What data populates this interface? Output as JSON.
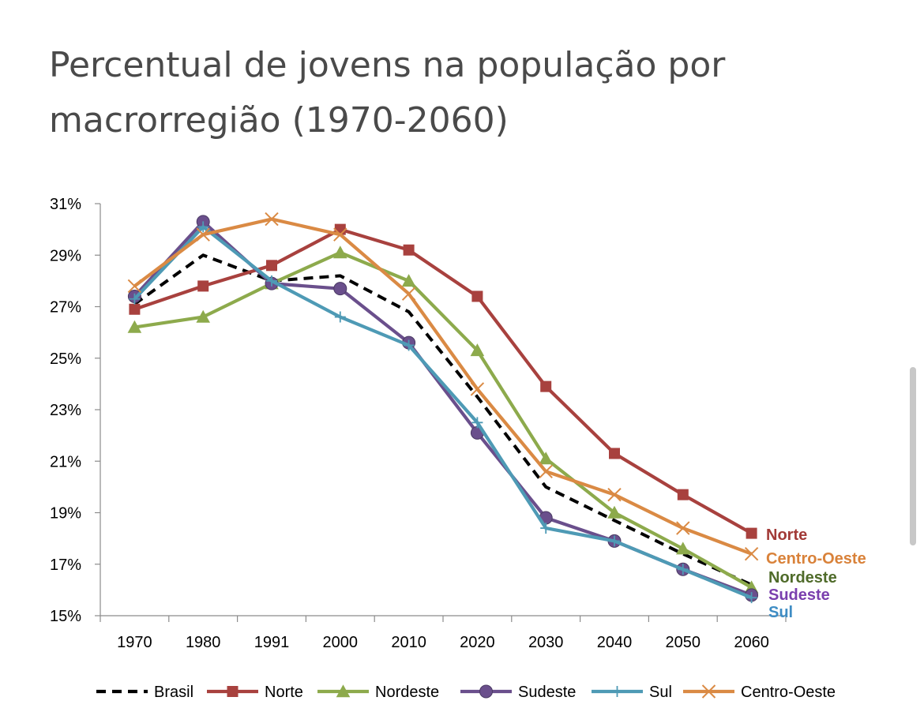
{
  "title_lines": [
    "Percentual de jovens na população por",
    "macrorregião (1970-2060)"
  ],
  "chart_data": {
    "type": "line",
    "title": "Percentual de jovens na população por macrorregião (1970-2060)",
    "categories": [
      "1970",
      "1980",
      "1991",
      "2000",
      "2010",
      "2020",
      "2030",
      "2040",
      "2050",
      "2060"
    ],
    "ylim": [
      15,
      31
    ],
    "yticks": [
      15,
      17,
      19,
      21,
      23,
      25,
      27,
      29,
      31
    ],
    "ytick_labels": [
      "15%",
      "17%",
      "19%",
      "21%",
      "23%",
      "25%",
      "27%",
      "29%",
      "31%"
    ],
    "grid": false,
    "legend_position": "bottom",
    "series": [
      {
        "name": "Brasil",
        "color": "#000000",
        "marker": "none",
        "dashed": true,
        "end_label": "",
        "values": [
          27.1,
          29.0,
          28.0,
          28.2,
          26.8,
          23.5,
          20.0,
          18.7,
          17.4,
          16.2
        ]
      },
      {
        "name": "Norte",
        "color": "#A8413E",
        "marker": "square",
        "dashed": false,
        "end_label": "Norte",
        "values": [
          26.9,
          27.8,
          28.6,
          30.0,
          29.2,
          27.4,
          23.9,
          21.3,
          19.7,
          18.2
        ]
      },
      {
        "name": "Nordeste",
        "color": "#8DAA4C",
        "marker": "triangle",
        "dashed": false,
        "end_label": "Nordeste",
        "values": [
          26.2,
          26.6,
          27.9,
          29.1,
          28.0,
          25.3,
          21.1,
          19.0,
          17.6,
          16.1
        ]
      },
      {
        "name": "Sudeste",
        "color": "#6A4F8C",
        "marker": "circle",
        "dashed": false,
        "end_label": "Sudeste",
        "values": [
          27.4,
          30.3,
          27.9,
          27.7,
          25.6,
          22.1,
          18.8,
          17.9,
          16.8,
          15.8
        ]
      },
      {
        "name": "Sul",
        "color": "#4E9AB5",
        "marker": "plus",
        "dashed": false,
        "end_label": "Sul",
        "values": [
          27.3,
          30.1,
          28.0,
          26.6,
          25.5,
          22.5,
          18.4,
          17.9,
          16.8,
          15.7
        ]
      },
      {
        "name": "Centro-Oeste",
        "color": "#DA8A44",
        "marker": "x",
        "dashed": false,
        "end_label": "Centro-Oeste",
        "values": [
          27.8,
          29.8,
          30.4,
          29.8,
          27.5,
          23.8,
          20.6,
          19.7,
          18.4,
          17.4
        ]
      }
    ],
    "end_label_colors": {
      "Norte": "#A23A37",
      "Centro-Oeste": "#D9823A",
      "Nordeste": "#4F6B2A",
      "Sudeste": "#7A3FAE",
      "Sul": "#3E8CC4"
    }
  }
}
